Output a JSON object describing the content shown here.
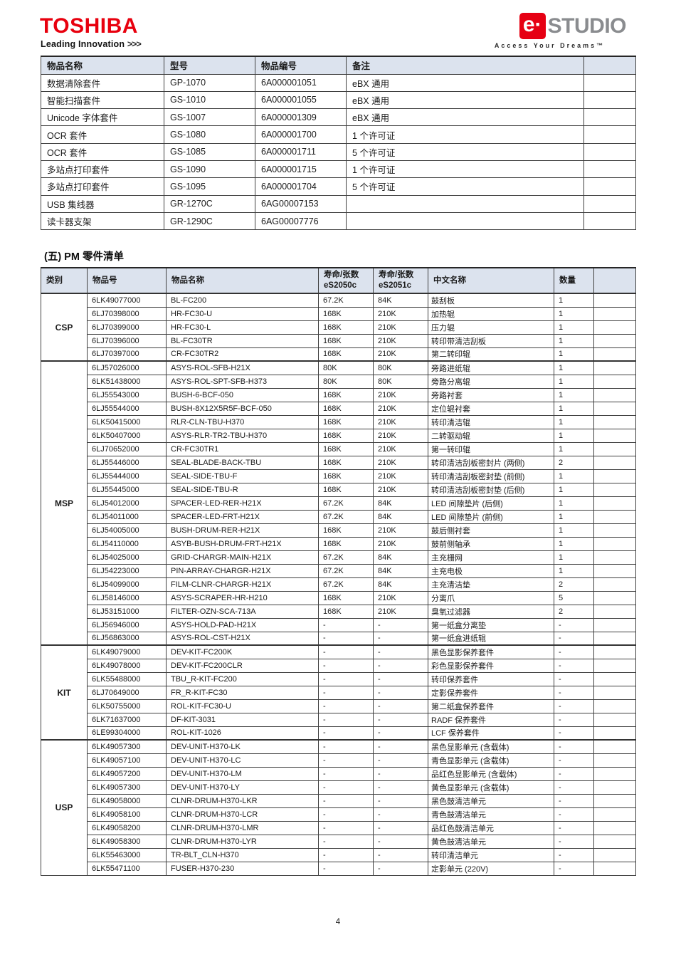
{
  "header": {
    "toshiba_logo_text": "TOSHIBA",
    "toshiba_tagline": "Leading Innovation",
    "toshiba_tagline_chevrons": ">>>",
    "estudio_e": "e·",
    "estudio_text": "STUDIO",
    "estudio_tagline": "Access Your Dreams™"
  },
  "colors": {
    "brand_red": "#E60012",
    "studio_gray": "#8A8C8E",
    "table_header_bg": "#DCE3EE",
    "table_border": "#404040"
  },
  "options_table": {
    "headers": {
      "name": "物品名称",
      "model": "型号",
      "part_no": "物品编号",
      "remark": "备注",
      "extra": ""
    },
    "rows": [
      [
        "数据清除套件",
        "GP-1070",
        "6A000001051",
        "eBX 通用"
      ],
      [
        "智能扫描套件",
        "GS-1010",
        "6A000001055",
        "eBX 通用"
      ],
      [
        "Unicode 字体套件",
        "GS-1007",
        "6A000001309",
        "eBX 通用"
      ],
      [
        "OCR 套件",
        "GS-1080",
        "6A000001700",
        "1 个许可证"
      ],
      [
        "OCR 套件",
        "GS-1085",
        "6A000001711",
        "5 个许可证"
      ],
      [
        "多站点打印套件",
        "GS-1090",
        "6A000001715",
        "1 个许可证"
      ],
      [
        "多站点打印套件",
        "GS-1095",
        "6A000001704",
        "5 个许可证"
      ],
      [
        "USB 集线器",
        "GR-1270C",
        "6AG00007153",
        ""
      ],
      [
        "读卡器支架",
        "GR-1290C",
        "6AG00007776",
        ""
      ]
    ]
  },
  "section_title": "(五) PM 零件清单",
  "pm_table": {
    "headers": {
      "category": "类别",
      "part_no": "物品号",
      "part_name": "物品名称",
      "life_label": "寿命/张数",
      "life_model_1": "eS2050c",
      "life_model_2": "eS2051c",
      "cn_name": "中文名称",
      "qty": "数量",
      "extra": ""
    },
    "groups": [
      {
        "category": "CSP",
        "rows": [
          [
            "6LK49077000",
            "BL-FC200",
            "67.2K",
            "84K",
            "鼓刮板",
            "1"
          ],
          [
            "6LJ70398000",
            "HR-FC30-U",
            "168K",
            "210K",
            "加热辊",
            "1"
          ],
          [
            "6LJ70399000",
            "HR-FC30-L",
            "168K",
            "210K",
            "压力辊",
            "1"
          ],
          [
            "6LJ70396000",
            "BL-FC30TR",
            "168K",
            "210K",
            "转印带清洁刮板",
            "1"
          ],
          [
            "6LJ70397000",
            "CR-FC30TR2",
            "168K",
            "210K",
            "第二转印辊",
            "1"
          ]
        ]
      },
      {
        "category": "MSP",
        "rows": [
          [
            "6LJ57026000",
            "ASYS-ROL-SFB-H21X",
            "80K",
            "80K",
            "旁路进纸辊",
            "1"
          ],
          [
            "6LK51438000",
            "ASYS-ROL-SPT-SFB-H373",
            "80K",
            "80K",
            "旁路分离辊",
            "1"
          ],
          [
            "6LJ55543000",
            "BUSH-6-BCF-050",
            "168K",
            "210K",
            "旁路衬套",
            "1"
          ],
          [
            "6LJ55544000",
            "BUSH-8X12X5R5F-BCF-050",
            "168K",
            "210K",
            "定位辊衬套",
            "1"
          ],
          [
            "6LK50415000",
            "RLR-CLN-TBU-H370",
            "168K",
            "210K",
            "转印清洁辊",
            "1"
          ],
          [
            "6LK50407000",
            "ASYS-RLR-TR2-TBU-H370",
            "168K",
            "210K",
            "二转驱动辊",
            "1"
          ],
          [
            "6LJ70652000",
            "CR-FC30TR1",
            "168K",
            "210K",
            "第一转印辊",
            "1"
          ],
          [
            "6LJ55446000",
            "SEAL-BLADE-BACK-TBU",
            "168K",
            "210K",
            "转印清洁刮板密封片 (两侧)",
            "2"
          ],
          [
            "6LJ55444000",
            "SEAL-SIDE-TBU-F",
            "168K",
            "210K",
            "转印清洁刮板密封垫 (前侧)",
            "1"
          ],
          [
            "6LJ55445000",
            "SEAL-SIDE-TBU-R",
            "168K",
            "210K",
            "转印清洁刮板密封垫 (后侧)",
            "1"
          ],
          [
            "6LJ54012000",
            "SPACER-LED-RER-H21X",
            "67.2K",
            "84K",
            "LED 间隙垫片 (后侧)",
            "1"
          ],
          [
            "6LJ54011000",
            "SPACER-LED-FRT-H21X",
            "67.2K",
            "84K",
            "LED 间隙垫片 (前侧)",
            "1"
          ],
          [
            "6LJ54005000",
            "BUSH-DRUM-RER-H21X",
            "168K",
            "210K",
            "鼓后侧衬套",
            "1"
          ],
          [
            "6LJ54110000",
            "ASYB-BUSH-DRUM-FRT-H21X",
            "168K",
            "210K",
            "鼓前侧轴承",
            "1"
          ],
          [
            "6LJ54025000",
            "GRID-CHARGR-MAIN-H21X",
            "67.2K",
            "84K",
            "主充栅网",
            "1"
          ],
          [
            "6LJ54223000",
            "PIN-ARRAY-CHARGR-H21X",
            "67.2K",
            "84K",
            "主充电极",
            "1"
          ],
          [
            "6LJ54099000",
            "FILM-CLNR-CHARGR-H21X",
            "67.2K",
            "84K",
            "主充清洁垫",
            "2"
          ],
          [
            "6LJ58146000",
            "ASYS-SCRAPER-HR-H210",
            "168K",
            "210K",
            "分离爪",
            "5"
          ],
          [
            "6LJ53151000",
            "FILTER-OZN-SCA-713A",
            "168K",
            "210K",
            "臭氧过滤器",
            "2"
          ],
          [
            "6LJ56946000",
            "ASYS-HOLD-PAD-H21X",
            "-",
            "-",
            "第一纸盒分离垫",
            "-"
          ],
          [
            "6LJ56863000",
            "ASYS-ROL-CST-H21X",
            "-",
            "-",
            "第一纸盒进纸辊",
            "-"
          ]
        ]
      },
      {
        "category": "KIT",
        "rows": [
          [
            "6LK49079000",
            "DEV-KIT-FC200K",
            "-",
            "-",
            "黑色显影保养套件",
            "-"
          ],
          [
            "6LK49078000",
            "DEV-KIT-FC200CLR",
            "-",
            "-",
            "彩色显影保养套件",
            "-"
          ],
          [
            "6LK55488000",
            "TBU_R-KIT-FC200",
            "-",
            "-",
            "转印保养套件",
            "-"
          ],
          [
            "6LJ70649000",
            "FR_R-KIT-FC30",
            "-",
            "-",
            "定影保养套件",
            "-"
          ],
          [
            "6LK50755000",
            "ROL-KIT-FC30-U",
            "-",
            "-",
            "第二纸盒保养套件",
            "-"
          ],
          [
            "6LK71637000",
            "DF-KIT-3031",
            "-",
            "-",
            "RADF 保养套件",
            "-"
          ],
          [
            "6LE99304000",
            "ROL-KIT-1026",
            "-",
            "-",
            "LCF 保养套件",
            "-"
          ]
        ]
      },
      {
        "category": "USP",
        "rows": [
          [
            "6LK49057300",
            "DEV-UNIT-H370-LK",
            "-",
            "-",
            "黑色显影单元 (含载体)",
            "-"
          ],
          [
            "6LK49057100",
            "DEV-UNIT-H370-LC",
            "-",
            "-",
            "青色显影单元 (含载体)",
            "-"
          ],
          [
            "6LK49057200",
            "DEV-UNIT-H370-LM",
            "-",
            "-",
            "品红色显影单元 (含载体)",
            "-"
          ],
          [
            "6LK49057300",
            "DEV-UNIT-H370-LY",
            "-",
            "-",
            "黄色显影单元 (含载体)",
            "-"
          ],
          [
            "6LK49058000",
            "CLNR-DRUM-H370-LKR",
            "-",
            "-",
            "黑色鼓清洁单元",
            "-"
          ],
          [
            "6LK49058100",
            "CLNR-DRUM-H370-LCR",
            "-",
            "-",
            "青色鼓清洁单元",
            "-"
          ],
          [
            "6LK49058200",
            "CLNR-DRUM-H370-LMR",
            "-",
            "-",
            "品红色鼓清洁单元",
            "-"
          ],
          [
            "6LK49058300",
            "CLNR-DRUM-H370-LYR",
            "-",
            "-",
            "黄色鼓清洁单元",
            "-"
          ],
          [
            "6LK55463000",
            "TR-BLT_CLN-H370",
            "-",
            "-",
            "转印清洁单元",
            "-"
          ],
          [
            "6LK55471100",
            "FUSER-H370-230",
            "-",
            "-",
            "定影单元 (220V)",
            "-"
          ]
        ]
      }
    ]
  },
  "footer": {
    "page_number": "4"
  }
}
